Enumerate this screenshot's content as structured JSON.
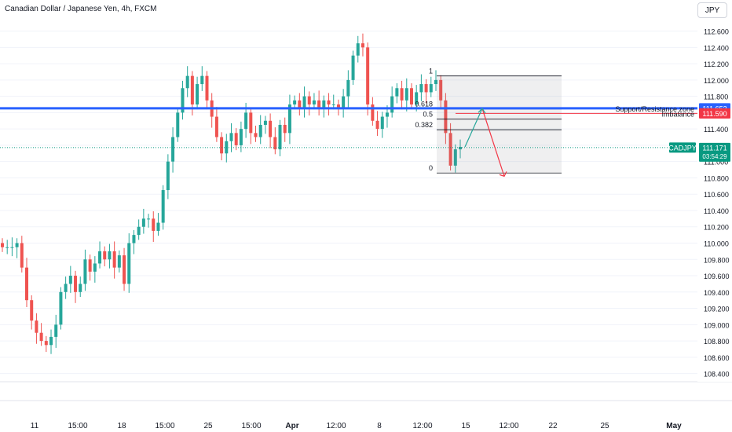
{
  "header": {
    "title": "Canadian Dollar / Japanese Yen, 4h, FXCM",
    "currency_button": "JPY"
  },
  "colors": {
    "up": "#26a69a",
    "down": "#ef5350",
    "support_line": "#2962ff",
    "imbalance": "#f23645",
    "price_label": "#089981",
    "projection_up": "#26a69a",
    "projection_down": "#f23645"
  },
  "chart_data": {
    "type": "candlestick",
    "symbol": "CADJPY",
    "ylim": [
      108.3,
      112.75
    ],
    "y_ticks": [
      "112.600",
      "112.400",
      "112.200",
      "112.000",
      "111.800",
      "111.600",
      "111.400",
      "111.200",
      "111.000",
      "110.800",
      "110.600",
      "110.400",
      "110.200",
      "110.000",
      "109.800",
      "109.600",
      "109.400",
      "109.200",
      "109.000",
      "108.800",
      "108.600",
      "108.400"
    ],
    "x_ticks": [
      "11",
      "15:00",
      "18",
      "15:00",
      "25",
      "15:00",
      "Apr",
      "12:00",
      "8",
      "12:00",
      "15",
      "12:00",
      "22",
      "25",
      "May"
    ],
    "last_price": {
      "symbol": "CADJPY",
      "value": "111.171",
      "countdown": "03:54:29",
      "y": 111.171
    },
    "levels": [
      {
        "name": "Support/Resistance zone",
        "value": "111.653",
        "y": 111.653
      },
      {
        "name": "Imbalance",
        "value": "111.590",
        "y": 111.59
      }
    ],
    "fibonacci": [
      {
        "label": "1",
        "y": 112.05
      },
      {
        "label": "0.618",
        "y": 111.645
      },
      {
        "label": "0.5",
        "y": 111.52
      },
      {
        "label": "0.382",
        "y": 111.39
      },
      {
        "label": "0",
        "y": 110.86
      }
    ],
    "projection": [
      {
        "step": 0,
        "y": 111.18
      },
      {
        "step": 1,
        "y": 111.65
      },
      {
        "step": 2,
        "y": 110.82
      }
    ],
    "closes": [
      109.95,
      109.95,
      109.95,
      110.0,
      109.7,
      109.3,
      109.05,
      108.9,
      108.8,
      108.75,
      108.85,
      109.0,
      109.4,
      109.5,
      109.6,
      109.4,
      109.5,
      109.8,
      109.65,
      109.75,
      109.9,
      109.8,
      109.9,
      109.7,
      109.85,
      109.5,
      110.0,
      110.1,
      110.2,
      110.3,
      110.3,
      110.15,
      110.25,
      110.65,
      111.0,
      111.3,
      111.6,
      111.9,
      112.05,
      111.7,
      111.95,
      112.05,
      111.75,
      111.55,
      111.3,
      111.1,
      111.25,
      111.35,
      111.2,
      111.4,
      111.6,
      111.35,
      111.3,
      111.45,
      111.5,
      111.3,
      111.15,
      111.45,
      111.35,
      111.7,
      111.75,
      111.65,
      111.8,
      111.7,
      111.75,
      111.65,
      111.75,
      111.7,
      111.7,
      111.65,
      111.8,
      112.0,
      112.3,
      112.45,
      112.4,
      111.7,
      111.5,
      111.4,
      111.55,
      111.6,
      111.8,
      111.9,
      111.75,
      111.9,
      111.7,
      111.85,
      111.95,
      111.85,
      111.95,
      112.0,
      111.75,
      111.35,
      110.95,
      111.15,
      111.18
    ]
  },
  "text": {
    "fib_labels": [
      "1",
      "0.618",
      "0.5",
      "0.382",
      "0"
    ]
  }
}
